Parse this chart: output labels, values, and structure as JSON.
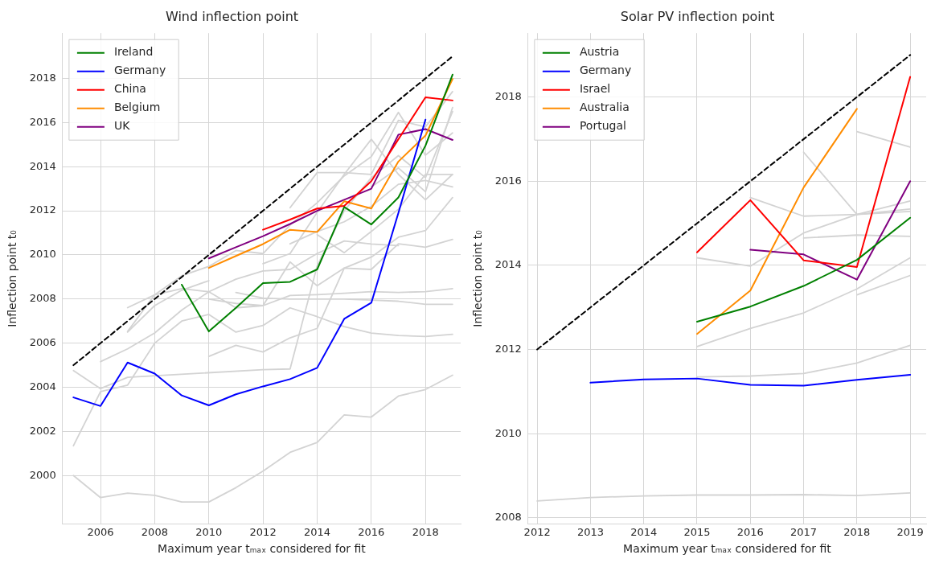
{
  "chart_data": [
    {
      "type": "line",
      "title": "Wind inflection point",
      "xlabel": "Maximum year tₘₐₓ considered for fit",
      "ylabel": "Inflection point t₀",
      "xlim": [
        2004.6,
        2019.3
      ],
      "xticks": [
        2006,
        2008,
        2010,
        2012,
        2014,
        2016,
        2018
      ],
      "ylim": [
        1997.8,
        2020.05
      ],
      "yticks": [
        2000,
        2002,
        2004,
        2006,
        2008,
        2010,
        2012,
        2014,
        2016,
        2018
      ],
      "grid": true,
      "legend": "top left",
      "marker": "none",
      "series": [
        {
          "name": "Ireland",
          "color": "#008000",
          "x": [
            2009,
            2010,
            2011,
            2012,
            2013,
            2014,
            2015,
            2016,
            2017,
            2018,
            2019
          ],
          "values": [
            2008.65,
            2006.53,
            2007.6,
            2008.72,
            2008.78,
            2009.34,
            2012.17,
            2011.38,
            2012.6,
            2014.95,
            2018.17
          ]
        },
        {
          "name": "Germany",
          "color": "#0000ff",
          "x": [
            2005,
            2006,
            2007,
            2008,
            2009,
            2010,
            2011,
            2012,
            2013,
            2014,
            2015,
            2016,
            2017,
            2018
          ],
          "values": [
            2003.54,
            2003.15,
            2005.12,
            2004.62,
            2003.63,
            2003.18,
            2003.68,
            2004.04,
            2004.37,
            2004.88,
            2007.1,
            2007.83,
            2011.9,
            2016.13
          ]
        },
        {
          "name": "China",
          "color": "#ff0000",
          "x": [
            2012,
            2013,
            2014,
            2015,
            2016,
            2017,
            2018,
            2019
          ],
          "values": [
            2011.14,
            2011.6,
            2012.1,
            2012.22,
            2013.34,
            2015.24,
            2017.14,
            2017.0
          ]
        },
        {
          "name": "Belgium",
          "color": "#ff8c00",
          "x": [
            2010,
            2011,
            2012,
            2013,
            2014,
            2015,
            2016,
            2017,
            2018,
            2019
          ],
          "values": [
            2009.41,
            2009.95,
            2010.49,
            2011.14,
            2011.04,
            2012.43,
            2012.1,
            2014.23,
            2015.41,
            2017.97
          ]
        },
        {
          "name": "UK",
          "color": "#800080",
          "x": [
            2010,
            2011,
            2012,
            2013,
            2014,
            2015,
            2016,
            2017,
            2018,
            2019
          ],
          "values": [
            2009.84,
            2010.35,
            2010.85,
            2011.4,
            2012.0,
            2012.5,
            2013.0,
            2015.45,
            2015.7,
            2015.21
          ]
        },
        {
          "color": "#000000",
          "line_style": "dashed",
          "x": [
            2005,
            2019
          ],
          "values": [
            2005,
            2019
          ]
        },
        {
          "color": "#d3d3d3",
          "x": [
            2005,
            2006,
            2007,
            2008,
            2009,
            2010,
            2011,
            2012,
            2013,
            2014,
            2015,
            2016,
            2017,
            2018,
            2019
          ],
          "values": [
            2000.0,
            1999.0,
            1999.2,
            1999.1,
            1998.8,
            1998.8,
            1999.45,
            2000.2,
            2001.05,
            2001.5,
            2002.75,
            2002.65,
            2003.6,
            2003.9,
            2004.55
          ]
        },
        {
          "color": "#d3d3d3",
          "x": [
            2010,
            2011,
            2012,
            2013,
            2014,
            2015,
            2016,
            2017,
            2018,
            2019
          ],
          "values": [
            2005.4,
            2005.9,
            2005.6,
            2006.24,
            2006.67,
            2009.4,
            2009.9,
            2010.8,
            2011.1,
            2012.6
          ]
        },
        {
          "color": "#d3d3d3",
          "x": [
            2005,
            2006,
            2007,
            2008,
            2009,
            2010,
            2011,
            2012,
            2013,
            2014,
            2015,
            2016,
            2017,
            2018,
            2019
          ],
          "values": [
            2001.35,
            2003.8,
            2004.1,
            2006.0,
            2007.0,
            2007.3,
            2006.5,
            2006.8,
            2007.6,
            2007.2,
            2006.75,
            2006.46,
            2006.35,
            2006.3,
            2006.4
          ]
        },
        {
          "color": "#d3d3d3",
          "x": [
            2005,
            2006,
            2007,
            2012,
            2013,
            2014,
            2015,
            2016,
            2017,
            2018,
            2019
          ],
          "values": [
            2004.76,
            2003.94,
            2004.45,
            2004.8,
            2004.83,
            2009.5,
            2012.0,
            2013.5,
            2014.5,
            2013.5,
            2016.5
          ]
        },
        {
          "color": "#d3d3d3",
          "x": [
            2010,
            2011,
            2012,
            2013,
            2014,
            2015,
            2016,
            2017,
            2018,
            2019
          ],
          "values": [
            2008.0,
            2007.8,
            2007.7,
            2008.16,
            2008.2,
            2008.26,
            2008.33,
            2008.3,
            2008.33,
            2008.47
          ]
        },
        {
          "color": "#d3d3d3",
          "x": [
            2011,
            2012,
            2013,
            2014,
            2015,
            2016,
            2017,
            2018,
            2019
          ],
          "values": [
            2008.3,
            2008.04,
            2008.0,
            2008.0,
            2008.0,
            2007.95,
            2007.9,
            2007.76,
            2007.76
          ]
        },
        {
          "color": "#d3d3d3",
          "x": [
            2007,
            2008,
            2009,
            2010,
            2011,
            2012,
            2013,
            2014,
            2015,
            2016,
            2017,
            2018,
            2019
          ],
          "values": [
            2006.53,
            2008.19,
            2008.47,
            2008.33,
            2007.6,
            2007.7,
            2009.68,
            2008.6,
            2009.4,
            2009.34,
            2010.5,
            2010.35,
            2010.7
          ]
        },
        {
          "color": "#d3d3d3",
          "x": [
            2006,
            2007,
            2008,
            2009,
            2010,
            2011,
            2012,
            2013,
            2014,
            2015,
            2016,
            2017
          ],
          "values": [
            2005.16,
            2005.74,
            2006.46,
            2007.5,
            2008.33,
            2008.9,
            2009.27,
            2009.34,
            2010.06,
            2010.63,
            2010.49,
            2010.42
          ]
        },
        {
          "color": "#d3d3d3",
          "x": [
            2012,
            2013,
            2014,
            2015,
            2016,
            2017,
            2018,
            2019
          ],
          "values": [
            2009.6,
            2010.06,
            2011.93,
            2013.65,
            2015.24,
            2013.65,
            2012.5,
            2013.65
          ]
        },
        {
          "color": "#d3d3d3",
          "x": [
            2007,
            2008,
            2009,
            2010,
            2011,
            2012,
            2013,
            2014,
            2015,
            2016,
            2017,
            2018,
            2019
          ],
          "values": [
            2007.61,
            2008.19,
            2009.05,
            2009.48,
            2010.2,
            2010.06,
            2011.35,
            2012.36,
            2013.58,
            2014.45,
            2016.46,
            2014.52,
            2015.53
          ]
        },
        {
          "color": "#d3d3d3",
          "x": [
            2013,
            2014,
            2015,
            2016,
            2017,
            2018,
            2019
          ],
          "values": [
            2012.14,
            2013.73,
            2013.73,
            2013.65,
            2016.1,
            2015.8,
            2017.4
          ]
        },
        {
          "color": "#d3d3d3",
          "x": [
            2014,
            2015,
            2016,
            2017,
            2018,
            2019
          ],
          "values": [
            2010.92,
            2010.1,
            2011.06,
            2012.07,
            2013.65,
            2013.65
          ]
        },
        {
          "color": "#d3d3d3",
          "x": [
            2013,
            2014,
            2015,
            2016,
            2017,
            2018,
            2019
          ],
          "values": [
            2010.5,
            2011.06,
            2011.5,
            2012.2,
            2013.2,
            2013.37,
            2013.08
          ]
        },
        {
          "color": "#d3d3d3",
          "x": [
            2016,
            2017,
            2018,
            2019
          ],
          "values": [
            2013.08,
            2013.94,
            2012.86,
            2016.68
          ]
        },
        {
          "color": "#d3d3d3",
          "x": [
            2007,
            2008,
            2009,
            2010
          ],
          "values": [
            2006.5,
            2007.7,
            2008.4,
            2008.83
          ]
        }
      ]
    },
    {
      "type": "line",
      "title": "Solar PV inflection point",
      "xlabel": "Maximum year tₘₐₓ considered for fit",
      "ylabel": "Inflection point t₀",
      "xlim": [
        2011.83,
        2019.3
      ],
      "xticks": [
        2012,
        2013,
        2014,
        2015,
        2016,
        2017,
        2018,
        2019
      ],
      "ylim": [
        2007.85,
        2019.52
      ],
      "yticks": [
        2008,
        2010,
        2012,
        2014,
        2016,
        2018
      ],
      "grid": true,
      "legend": "top left",
      "marker": "none",
      "series": [
        {
          "name": "Austria",
          "color": "#008000",
          "x": [
            2015,
            2016,
            2017,
            2018,
            2019
          ],
          "values": [
            2012.66,
            2013.02,
            2013.51,
            2014.13,
            2015.13
          ]
        },
        {
          "name": "Germany",
          "color": "#0000ff",
          "x": [
            2013,
            2014,
            2015,
            2016,
            2017,
            2018,
            2019
          ],
          "values": [
            2011.21,
            2011.29,
            2011.31,
            2011.16,
            2011.14,
            2011.28,
            2011.4
          ]
        },
        {
          "name": "Israel",
          "color": "#ff0000",
          "x": [
            2015,
            2016,
            2017,
            2018,
            2019
          ],
          "values": [
            2014.31,
            2015.55,
            2014.12,
            2013.96,
            2018.48
          ]
        },
        {
          "name": "Australia",
          "color": "#ff8c00",
          "x": [
            2015,
            2016,
            2017,
            2018
          ],
          "values": [
            2012.37,
            2013.4,
            2015.85,
            2017.72
          ]
        },
        {
          "name": "Portugal",
          "color": "#800080",
          "x": [
            2016,
            2017,
            2018,
            2019
          ],
          "values": [
            2014.37,
            2014.26,
            2013.66,
            2016.0
          ]
        },
        {
          "color": "#000000",
          "line_style": "dashed",
          "x": [
            2012,
            2019
          ],
          "values": [
            2012,
            2019
          ]
        },
        {
          "color": "#d3d3d3",
          "x": [
            2012,
            2013,
            2014,
            2015,
            2016,
            2017,
            2018,
            2019
          ],
          "values": [
            2008.4,
            2008.48,
            2008.52,
            2008.54,
            2008.54,
            2008.55,
            2008.53,
            2008.59
          ]
        },
        {
          "color": "#d3d3d3",
          "x": [
            2015,
            2016,
            2017,
            2018,
            2019
          ],
          "values": [
            2011.35,
            2011.37,
            2011.43,
            2011.68,
            2012.1
          ]
        },
        {
          "color": "#d3d3d3",
          "x": [
            2015,
            2016,
            2017,
            2018,
            2019
          ],
          "values": [
            2012.07,
            2012.5,
            2012.87,
            2013.44,
            2014.18
          ]
        },
        {
          "color": "#d3d3d3",
          "x": [
            2018,
            2019
          ],
          "values": [
            2013.3,
            2013.76
          ]
        },
        {
          "color": "#d3d3d3",
          "x": [
            2015,
            2016,
            2017,
            2018,
            2019
          ],
          "values": [
            2014.18,
            2013.98,
            2014.77,
            2015.21,
            2015.53
          ]
        },
        {
          "color": "#d3d3d3",
          "x": [
            2017,
            2018,
            2019
          ],
          "values": [
            2014.65,
            2014.72,
            2014.69
          ]
        },
        {
          "color": "#d3d3d3",
          "x": [
            2016,
            2017,
            2018,
            2019
          ],
          "values": [
            2015.61,
            2015.17,
            2015.21,
            2015.34
          ]
        },
        {
          "color": "#d3d3d3",
          "x": [
            2017,
            2018,
            2019
          ],
          "values": [
            2016.69,
            2015.21,
            2015.28
          ]
        },
        {
          "color": "#d3d3d3",
          "x": [
            2018,
            2019
          ],
          "values": [
            2017.18,
            2016.81
          ]
        }
      ]
    }
  ]
}
